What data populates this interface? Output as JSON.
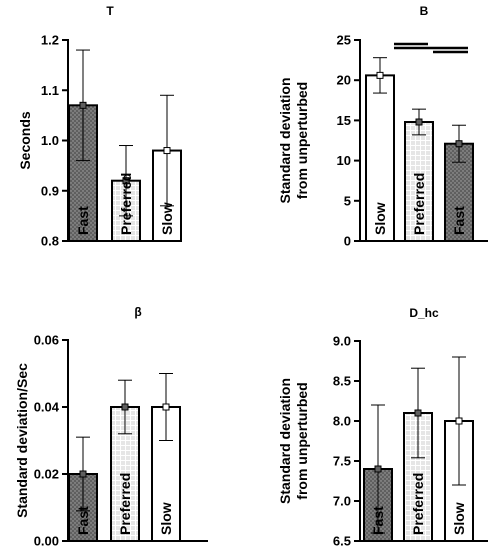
{
  "chart_data": [
    {
      "type": "bar",
      "title": "T",
      "ylabel": "Seconds",
      "xlabel": "",
      "ylim": [
        0.8,
        1.2
      ],
      "yticks": [
        "0.8",
        "0.9",
        "1.0",
        "1.1",
        "1.2"
      ],
      "categories": [
        "Fast",
        "Preferred",
        "Slow"
      ],
      "values": [
        1.07,
        0.92,
        0.98
      ],
      "error": [
        0.11,
        0.07,
        0.11
      ],
      "fills": [
        "dark-dotted",
        "light-grid",
        "white"
      ]
    },
    {
      "type": "bar",
      "title": "B",
      "ylabel": "Standard deviation from unperturbed",
      "xlabel": "",
      "ylim": [
        0,
        25
      ],
      "yticks": [
        "0",
        "5",
        "10",
        "15",
        "20",
        "25"
      ],
      "categories": [
        "Slow",
        "Preferred",
        "Fast"
      ],
      "values": [
        20.6,
        14.8,
        12.1
      ],
      "error": [
        2.2,
        1.6,
        2.3
      ],
      "fills": [
        "white",
        "light-grid",
        "dark-dotted"
      ],
      "significance_bars": [
        [
          "Slow",
          "Preferred"
        ],
        [
          "Slow",
          "Fast"
        ],
        [
          "Preferred",
          "Fast"
        ]
      ]
    },
    {
      "type": "bar",
      "title": "β",
      "ylabel": "Standard deviation/Sec",
      "xlabel": "",
      "ylim": [
        0,
        0.06
      ],
      "yticks": [
        "0.00",
        "0.02",
        "0.04",
        "0.06"
      ],
      "categories": [
        "Fast",
        "Preferred",
        "Slow"
      ],
      "values": [
        0.02,
        0.04,
        0.04
      ],
      "error": [
        0.011,
        0.008,
        0.01
      ],
      "fills": [
        "dark-dotted",
        "light-grid",
        "white"
      ]
    },
    {
      "type": "bar",
      "title": "D_hc",
      "ylabel": "Standard deviation from unperturbed",
      "xlabel": "",
      "ylim": [
        6.5,
        9.0
      ],
      "yticks": [
        "6.5",
        "7.0",
        "7.5",
        "8.0",
        "8.5",
        "9.0"
      ],
      "categories": [
        "Fast",
        "Preferred",
        "Slow"
      ],
      "values": [
        7.4,
        8.1,
        8.0
      ],
      "error": [
        0.8,
        0.56,
        0.8
      ],
      "fills": [
        "dark-dotted",
        "light-grid",
        "white"
      ]
    }
  ],
  "colors": {
    "dark_fill": "#5f5f5f",
    "dark_dot": "#a9a9a9",
    "grid_bg": "#e6e6e6",
    "grid_line": "#ffffff",
    "bar_edge": "#000000"
  }
}
